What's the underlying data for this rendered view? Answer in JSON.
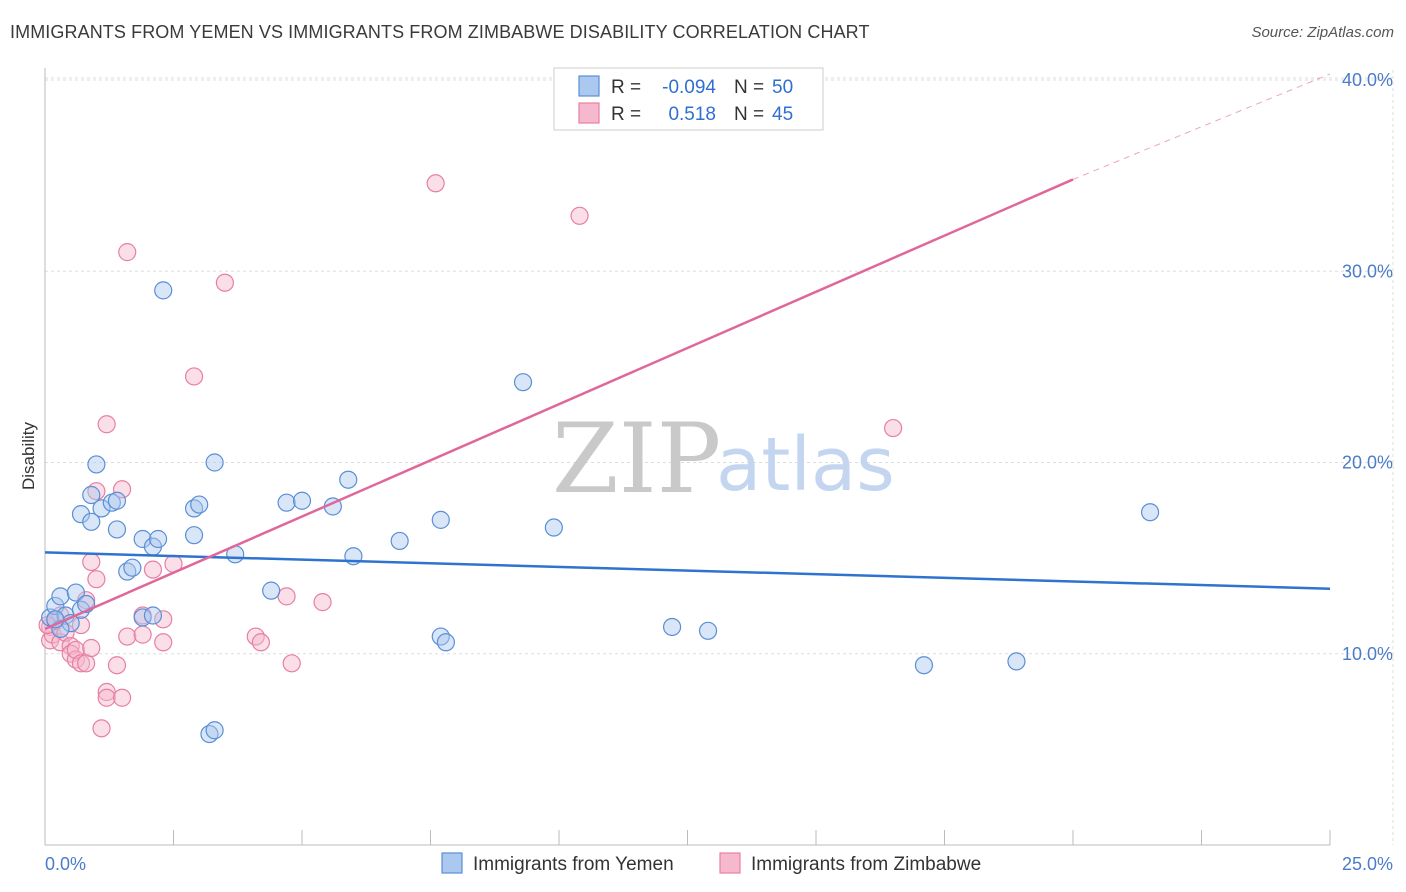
{
  "title": "IMMIGRANTS FROM YEMEN VS IMMIGRANTS FROM ZIMBABWE DISABILITY CORRELATION CHART",
  "source": "Source: ZipAtlas.com",
  "watermark": {
    "zip": "ZIP",
    "atlas": "atlas"
  },
  "colors": {
    "yemen_fill": "#aac8f0",
    "yemen_stroke": "#5a8fd6",
    "yemen_line": "#2f73d0",
    "zimbabwe_fill": "#f5b8cc",
    "zimbabwe_stroke": "#e87fa2",
    "zimbabwe_line": "#e0679a",
    "tick_text": "#4a7cc9",
    "grid": "#dddddd"
  },
  "legend": {
    "rows": [
      {
        "r_label": "R =",
        "r_value": "-0.094",
        "n_label": "N =",
        "n_value": "50"
      },
      {
        "r_label": "R =",
        "r_value": "0.518",
        "n_label": "N =",
        "n_value": "45"
      }
    ]
  },
  "chart_data": {
    "type": "scatter",
    "title": "IMMIGRANTS FROM YEMEN VS IMMIGRANTS FROM ZIMBABWE DISABILITY CORRELATION CHART",
    "xlabel": "",
    "ylabel": "Disability",
    "xlim": [
      0,
      25
    ],
    "ylim": [
      0,
      40
    ],
    "x_tick_labels": [
      "0.0%",
      "25.0%"
    ],
    "y_ticks": [
      10,
      20,
      30,
      40
    ],
    "y_tick_labels": [
      "10.0%",
      "20.0%",
      "30.0%",
      "40.0%"
    ],
    "grid": true,
    "series": [
      {
        "name": "Immigrants from Yemen",
        "R": -0.094,
        "N": 50,
        "trend": {
          "x0": 0,
          "y0": 15.3,
          "x1": 25,
          "y1": 13.4
        },
        "points": [
          [
            0.1,
            11.9
          ],
          [
            0.2,
            12.5
          ],
          [
            0.3,
            13.0
          ],
          [
            0.4,
            12.0
          ],
          [
            0.5,
            11.6
          ],
          [
            0.6,
            13.2
          ],
          [
            0.7,
            12.3
          ],
          [
            0.8,
            12.6
          ],
          [
            0.3,
            11.3
          ],
          [
            0.2,
            11.8
          ],
          [
            0.7,
            17.3
          ],
          [
            0.9,
            16.9
          ],
          [
            1.0,
            19.9
          ],
          [
            0.9,
            18.3
          ],
          [
            1.1,
            17.6
          ],
          [
            1.3,
            17.9
          ],
          [
            1.4,
            18.0
          ],
          [
            1.4,
            16.5
          ],
          [
            1.6,
            14.3
          ],
          [
            1.7,
            14.5
          ],
          [
            1.9,
            16.0
          ],
          [
            2.1,
            15.6
          ],
          [
            2.2,
            16.0
          ],
          [
            1.9,
            11.9
          ],
          [
            2.1,
            12.0
          ],
          [
            2.3,
            29.0
          ],
          [
            2.9,
            17.6
          ],
          [
            3.0,
            17.8
          ],
          [
            2.9,
            16.2
          ],
          [
            3.3,
            20.0
          ],
          [
            3.2,
            5.8
          ],
          [
            3.3,
            6.0
          ],
          [
            3.7,
            15.2
          ],
          [
            4.4,
            13.3
          ],
          [
            4.7,
            17.9
          ],
          [
            5.0,
            18.0
          ],
          [
            5.6,
            17.7
          ],
          [
            5.9,
            19.1
          ],
          [
            6.0,
            15.1
          ],
          [
            6.9,
            15.9
          ],
          [
            7.7,
            17.0
          ],
          [
            7.7,
            10.9
          ],
          [
            7.8,
            10.6
          ],
          [
            9.3,
            24.2
          ],
          [
            9.9,
            16.6
          ],
          [
            12.2,
            11.4
          ],
          [
            12.9,
            11.2
          ],
          [
            17.1,
            9.4
          ],
          [
            18.9,
            9.6
          ],
          [
            21.5,
            17.4
          ]
        ]
      },
      {
        "name": "Immigrants from Zimbabwe",
        "R": 0.518,
        "N": 45,
        "trend": {
          "x0": 0,
          "y0": 11.3,
          "x1": 20,
          "y1": 34.8
        },
        "trend_dashed": {
          "x0": 20,
          "y0": 34.8,
          "x1": 25,
          "y1": 40.7
        },
        "points": [
          [
            0.1,
            11.4
          ],
          [
            0.1,
            10.7
          ],
          [
            0.15,
            11.0
          ],
          [
            0.2,
            11.7
          ],
          [
            0.3,
            12.0
          ],
          [
            0.3,
            10.6
          ],
          [
            0.4,
            11.1
          ],
          [
            0.5,
            10.4
          ],
          [
            0.5,
            10.0
          ],
          [
            0.6,
            9.7
          ],
          [
            0.6,
            10.2
          ],
          [
            0.7,
            9.5
          ],
          [
            0.7,
            11.5
          ],
          [
            0.8,
            12.8
          ],
          [
            0.8,
            9.5
          ],
          [
            0.9,
            14.8
          ],
          [
            0.9,
            10.3
          ],
          [
            1.0,
            18.5
          ],
          [
            1.0,
            13.9
          ],
          [
            1.1,
            6.1
          ],
          [
            1.2,
            8.0
          ],
          [
            1.2,
            7.7
          ],
          [
            1.2,
            22.0
          ],
          [
            1.4,
            9.4
          ],
          [
            1.5,
            7.7
          ],
          [
            1.5,
            18.6
          ],
          [
            1.6,
            31.0
          ],
          [
            1.6,
            10.9
          ],
          [
            1.9,
            12.0
          ],
          [
            1.9,
            11.0
          ],
          [
            2.1,
            14.4
          ],
          [
            2.3,
            11.8
          ],
          [
            2.3,
            10.6
          ],
          [
            2.5,
            14.7
          ],
          [
            2.9,
            24.5
          ],
          [
            3.5,
            29.4
          ],
          [
            4.1,
            10.9
          ],
          [
            4.2,
            10.6
          ],
          [
            4.7,
            13.0
          ],
          [
            4.8,
            9.5
          ],
          [
            5.4,
            12.7
          ],
          [
            7.6,
            34.6
          ],
          [
            10.4,
            32.9
          ],
          [
            16.5,
            21.8
          ],
          [
            0.05,
            11.5
          ]
        ]
      }
    ]
  },
  "bottom_legend": {
    "items": [
      {
        "label": "Immigrants from Yemen"
      },
      {
        "label": "Immigrants from Zimbabwe"
      }
    ]
  }
}
